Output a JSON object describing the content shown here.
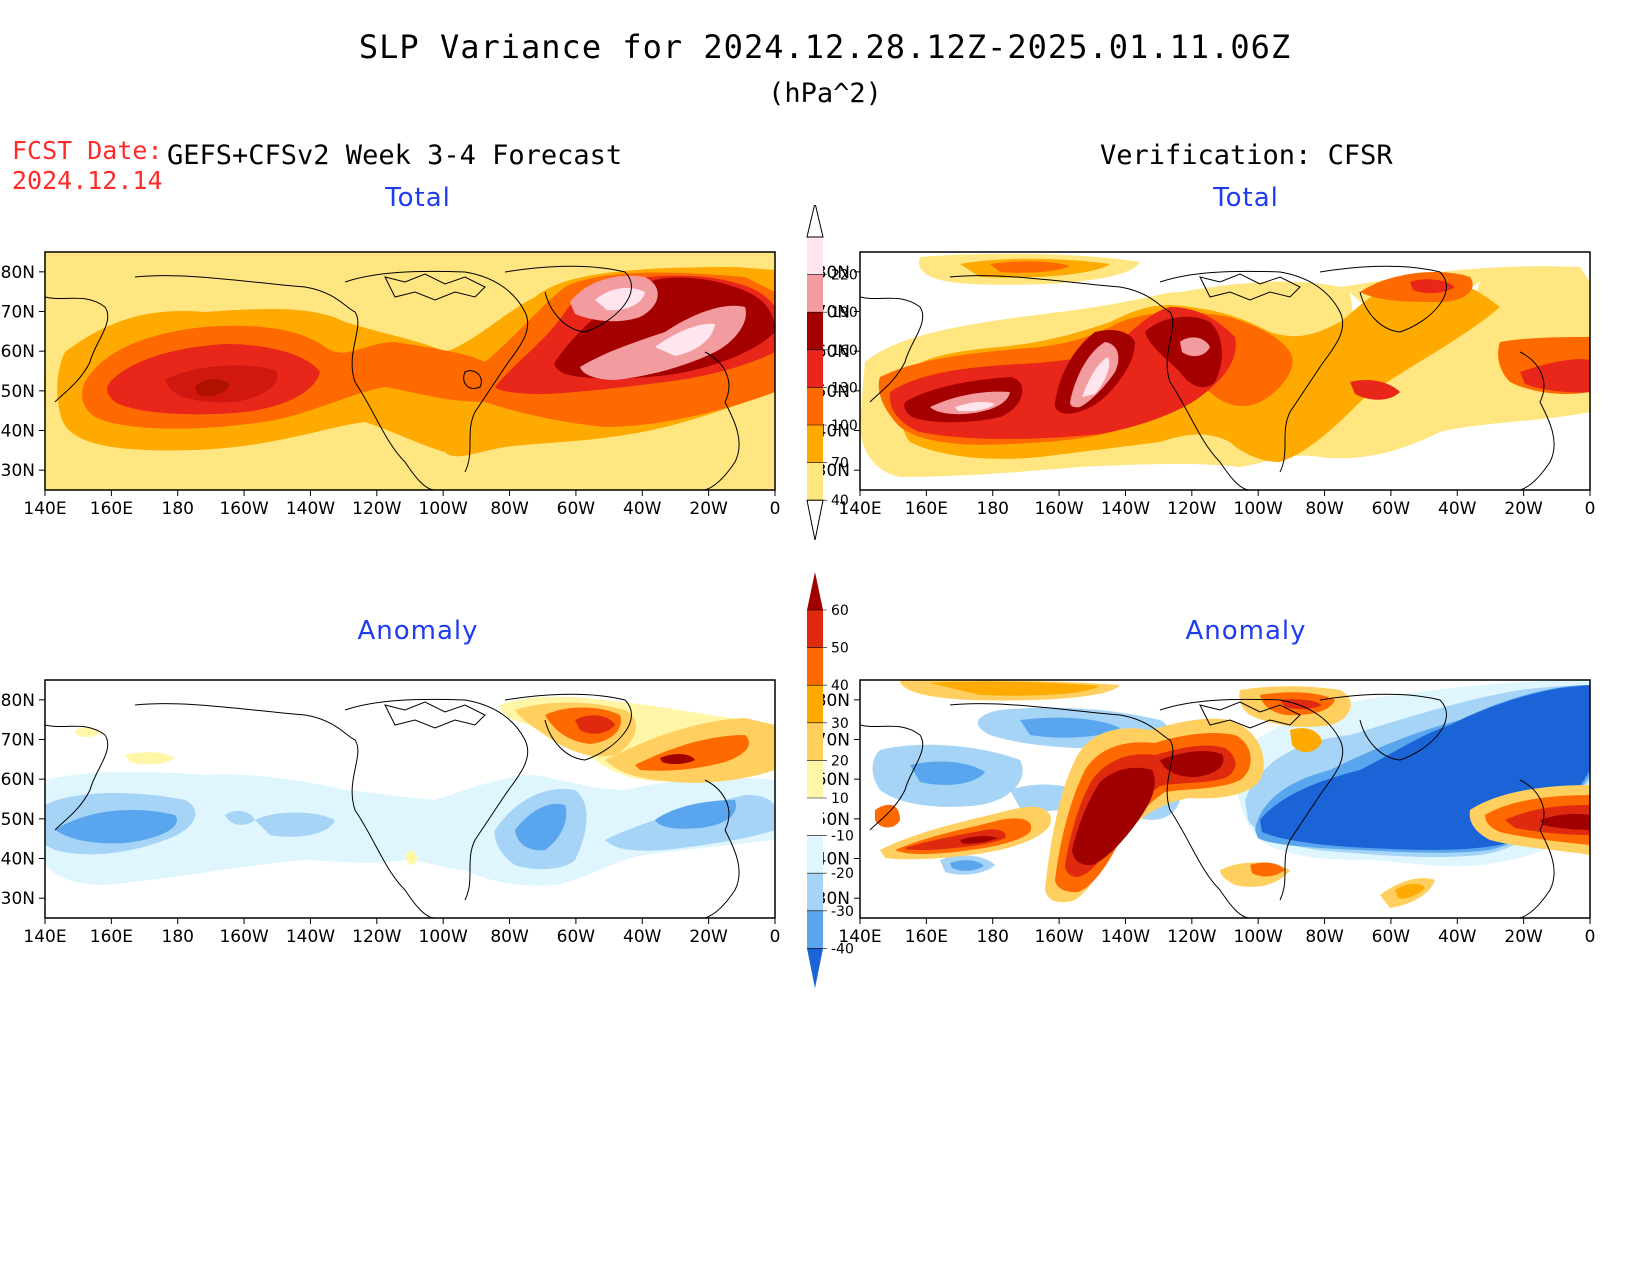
{
  "title": "SLP Variance for 2024.12.28.12Z-2025.01.11.06Z",
  "subtitle": "(hPa^2)",
  "fcst": {
    "label": "FCST Date:",
    "date": "2024.12.14"
  },
  "left_heading": "GEFS+CFSv2 Week 3-4 Forecast",
  "right_heading": "Verification: CFSR",
  "panels": {
    "fcst_total": {
      "title": "Total"
    },
    "verif_total": {
      "title": "Total"
    },
    "fcst_anomaly": {
      "title": "Anomaly"
    },
    "verif_anomaly": {
      "title": "Anomaly"
    }
  },
  "axes": {
    "lat_labels": [
      "80N",
      "70N",
      "60N",
      "50N",
      "40N",
      "30N"
    ],
    "lon_labels": [
      "140E",
      "160E",
      "180",
      "160W",
      "140W",
      "120W",
      "100W",
      "80W",
      "60W",
      "40W",
      "20W",
      "0"
    ],
    "lat_range": [
      25,
      85
    ],
    "lon_range": [
      "140E",
      "0"
    ]
  },
  "total_colorbar": {
    "labels": [
      "40",
      "70",
      "100",
      "130",
      "160",
      "190",
      "220"
    ],
    "colors": [
      "#ffffff",
      "#ffe680",
      "#ffaa00",
      "#ff6a00",
      "#e8261a",
      "#a50000",
      "#f29ca0",
      "#ffe6ee"
    ]
  },
  "anomaly_colorbar": {
    "labels": [
      "60",
      "50",
      "40",
      "30",
      "20",
      "10",
      "-10",
      "-20",
      "-30",
      "-40"
    ],
    "colors": [
      "#a00000",
      "#e02a10",
      "#ff6a00",
      "#ffaa00",
      "#ffd060",
      "#fff6a8",
      "#ffffff",
      "#dff6ff",
      "#a6d4f6",
      "#5aa6ee",
      "#1a64d8"
    ]
  },
  "palette": {
    "t40": "#ffe680",
    "t70": "#ffaa00",
    "t100": "#ff6a00",
    "t130": "#e8261a",
    "t160": "#a50000",
    "t190": "#f29ca0",
    "t220": "#ffe6ee",
    "a10": "#fff6a8",
    "a20": "#ffd060",
    "a30": "#ffaa00",
    "a40": "#ff6a00",
    "a50": "#e02a10",
    "a60": "#a00000",
    "n10": "#dff6ff",
    "n20": "#a6d4f6",
    "n30": "#5aa6ee",
    "n40": "#1a64d8",
    "title_blue": "#1f3cf0",
    "fcst_red": "#ff2a2a"
  }
}
